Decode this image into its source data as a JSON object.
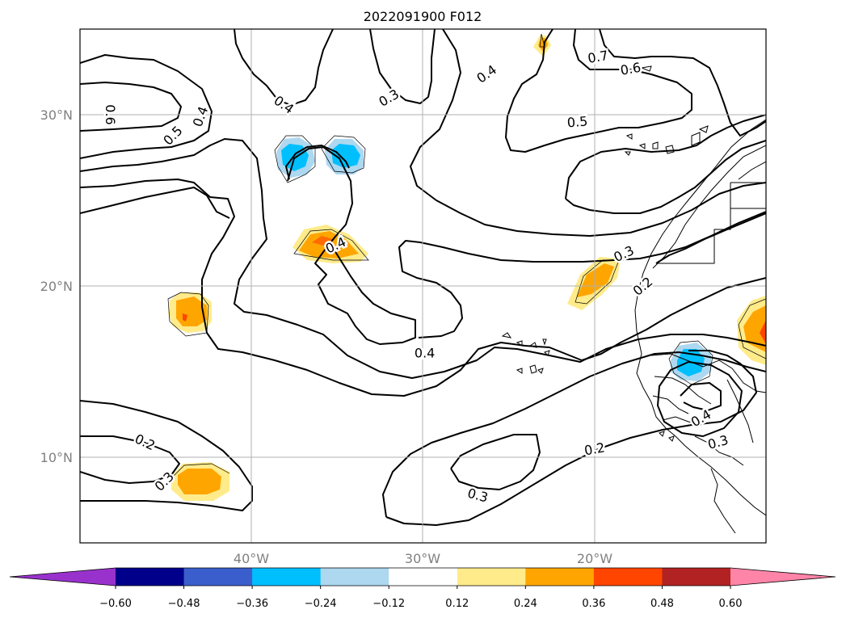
{
  "title": "2022091900 F012",
  "map": {
    "lon_range": [
      -50,
      -10
    ],
    "lat_range": [
      5,
      35
    ],
    "lon_ticks": [
      {
        "value": -40,
        "label": "40°W"
      },
      {
        "value": -30,
        "label": "30°W"
      },
      {
        "value": -20,
        "label": "20°W"
      }
    ],
    "lat_ticks": [
      {
        "value": 30,
        "label": "30°N"
      },
      {
        "value": 20,
        "label": "20°N"
      },
      {
        "value": 10,
        "label": "10°N"
      }
    ],
    "grid": true
  },
  "colorbar": {
    "levels": [
      "−0.60",
      "−0.48",
      "−0.36",
      "−0.24",
      "−0.12",
      "0.12",
      "0.24",
      "0.36",
      "0.48",
      "0.60"
    ],
    "colors": [
      "#9932cc",
      "#00008b",
      "#3a5fcd",
      "#00bfff",
      "#add8f0",
      "#ffffff",
      "#ffeb8a",
      "#ffa500",
      "#ff4500",
      "#b22222",
      "#ff85a8"
    ],
    "extend": "both"
  },
  "contour_labels": [
    {
      "text": "0.7",
      "lon": -19.8,
      "lat": 33.4,
      "rot": -10
    },
    {
      "text": "0.6",
      "lon": -17.9,
      "lat": 32.7,
      "rot": -10
    },
    {
      "text": "0.5",
      "lon": -21.0,
      "lat": 29.6,
      "rot": -5
    },
    {
      "text": "0.4",
      "lon": -26.3,
      "lat": 32.4,
      "rot": -35
    },
    {
      "text": "0.3",
      "lon": -32.0,
      "lat": 31.0,
      "rot": -30
    },
    {
      "text": "0.4",
      "lon": -38.1,
      "lat": 30.6,
      "rot": 35
    },
    {
      "text": "0.6",
      "lon": -48.2,
      "lat": 30.0,
      "rot": 90
    },
    {
      "text": "0.4",
      "lon": -43.0,
      "lat": 29.9,
      "rot": -70
    },
    {
      "text": "0.5",
      "lon": -44.6,
      "lat": 28.8,
      "rot": -45
    },
    {
      "text": "0.4",
      "lon": -35.1,
      "lat": 22.4,
      "rot": -25
    },
    {
      "text": "0.3",
      "lon": -18.3,
      "lat": 21.9,
      "rot": -25
    },
    {
      "text": "0.2",
      "lon": -17.2,
      "lat": 20.0,
      "rot": -40
    },
    {
      "text": "0.4",
      "lon": -29.9,
      "lat": 16.1,
      "rot": 0
    },
    {
      "text": "0.4",
      "lon": -13.8,
      "lat": 12.3,
      "rot": -30
    },
    {
      "text": "0.3",
      "lon": -12.8,
      "lat": 10.9,
      "rot": -15
    },
    {
      "text": "0.2",
      "lon": -20.0,
      "lat": 10.5,
      "rot": -10
    },
    {
      "text": "0.3",
      "lon": -26.8,
      "lat": 7.8,
      "rot": 15
    },
    {
      "text": "0.2",
      "lon": -46.2,
      "lat": 10.9,
      "rot": 25
    },
    {
      "text": "0.3",
      "lon": -45.1,
      "lat": 8.6,
      "rot": -45
    }
  ]
}
